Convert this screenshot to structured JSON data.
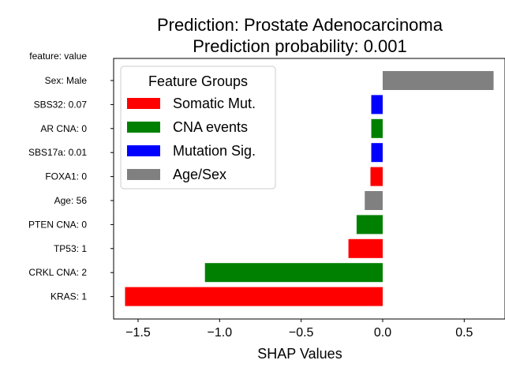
{
  "chart_data": {
    "type": "bar",
    "orientation": "horizontal",
    "title_lines": [
      "Prediction: Prostate Adenocarcinoma",
      "Prediction probability: 0.001"
    ],
    "ylabel_header": "feature: value",
    "xlabel": "SHAP Values",
    "xlim": [
      -1.65,
      0.75
    ],
    "xticks": [
      -1.5,
      -1.0,
      -0.5,
      0.0,
      0.5
    ],
    "xtick_labels": [
      "−1.5",
      "−1.0",
      "−0.5",
      "0.0",
      "0.5"
    ],
    "grid": false,
    "legend_placement": "upper-left",
    "legend": {
      "title": "Feature Groups",
      "entries": [
        {
          "label": "Somatic Mut.",
          "color": "#ff0000"
        },
        {
          "label": "CNA events",
          "color": "#008000"
        },
        {
          "label": "Mutation Sig.",
          "color": "#0000ff"
        },
        {
          "label": "Age/Sex",
          "color": "#808080"
        }
      ]
    },
    "bars": [
      {
        "label": "Sex: Male",
        "value": 0.68,
        "color": "#808080"
      },
      {
        "label": "SBS32: 0.07",
        "value": -0.07,
        "color": "#0000ff"
      },
      {
        "label": "AR CNA: 0",
        "value": -0.07,
        "color": "#008000"
      },
      {
        "label": "SBS17a: 0.01",
        "value": -0.07,
        "color": "#0000ff"
      },
      {
        "label": "FOXA1: 0",
        "value": -0.075,
        "color": "#ff0000"
      },
      {
        "label": "Age: 56",
        "value": -0.11,
        "color": "#808080"
      },
      {
        "label": "PTEN CNA: 0",
        "value": -0.16,
        "color": "#008000"
      },
      {
        "label": "TP53: 1",
        "value": -0.21,
        "color": "#ff0000"
      },
      {
        "label": "CRKL CNA: 2",
        "value": -1.09,
        "color": "#008000"
      },
      {
        "label": "KRAS: 1",
        "value": -1.58,
        "color": "#ff0000"
      }
    ]
  }
}
